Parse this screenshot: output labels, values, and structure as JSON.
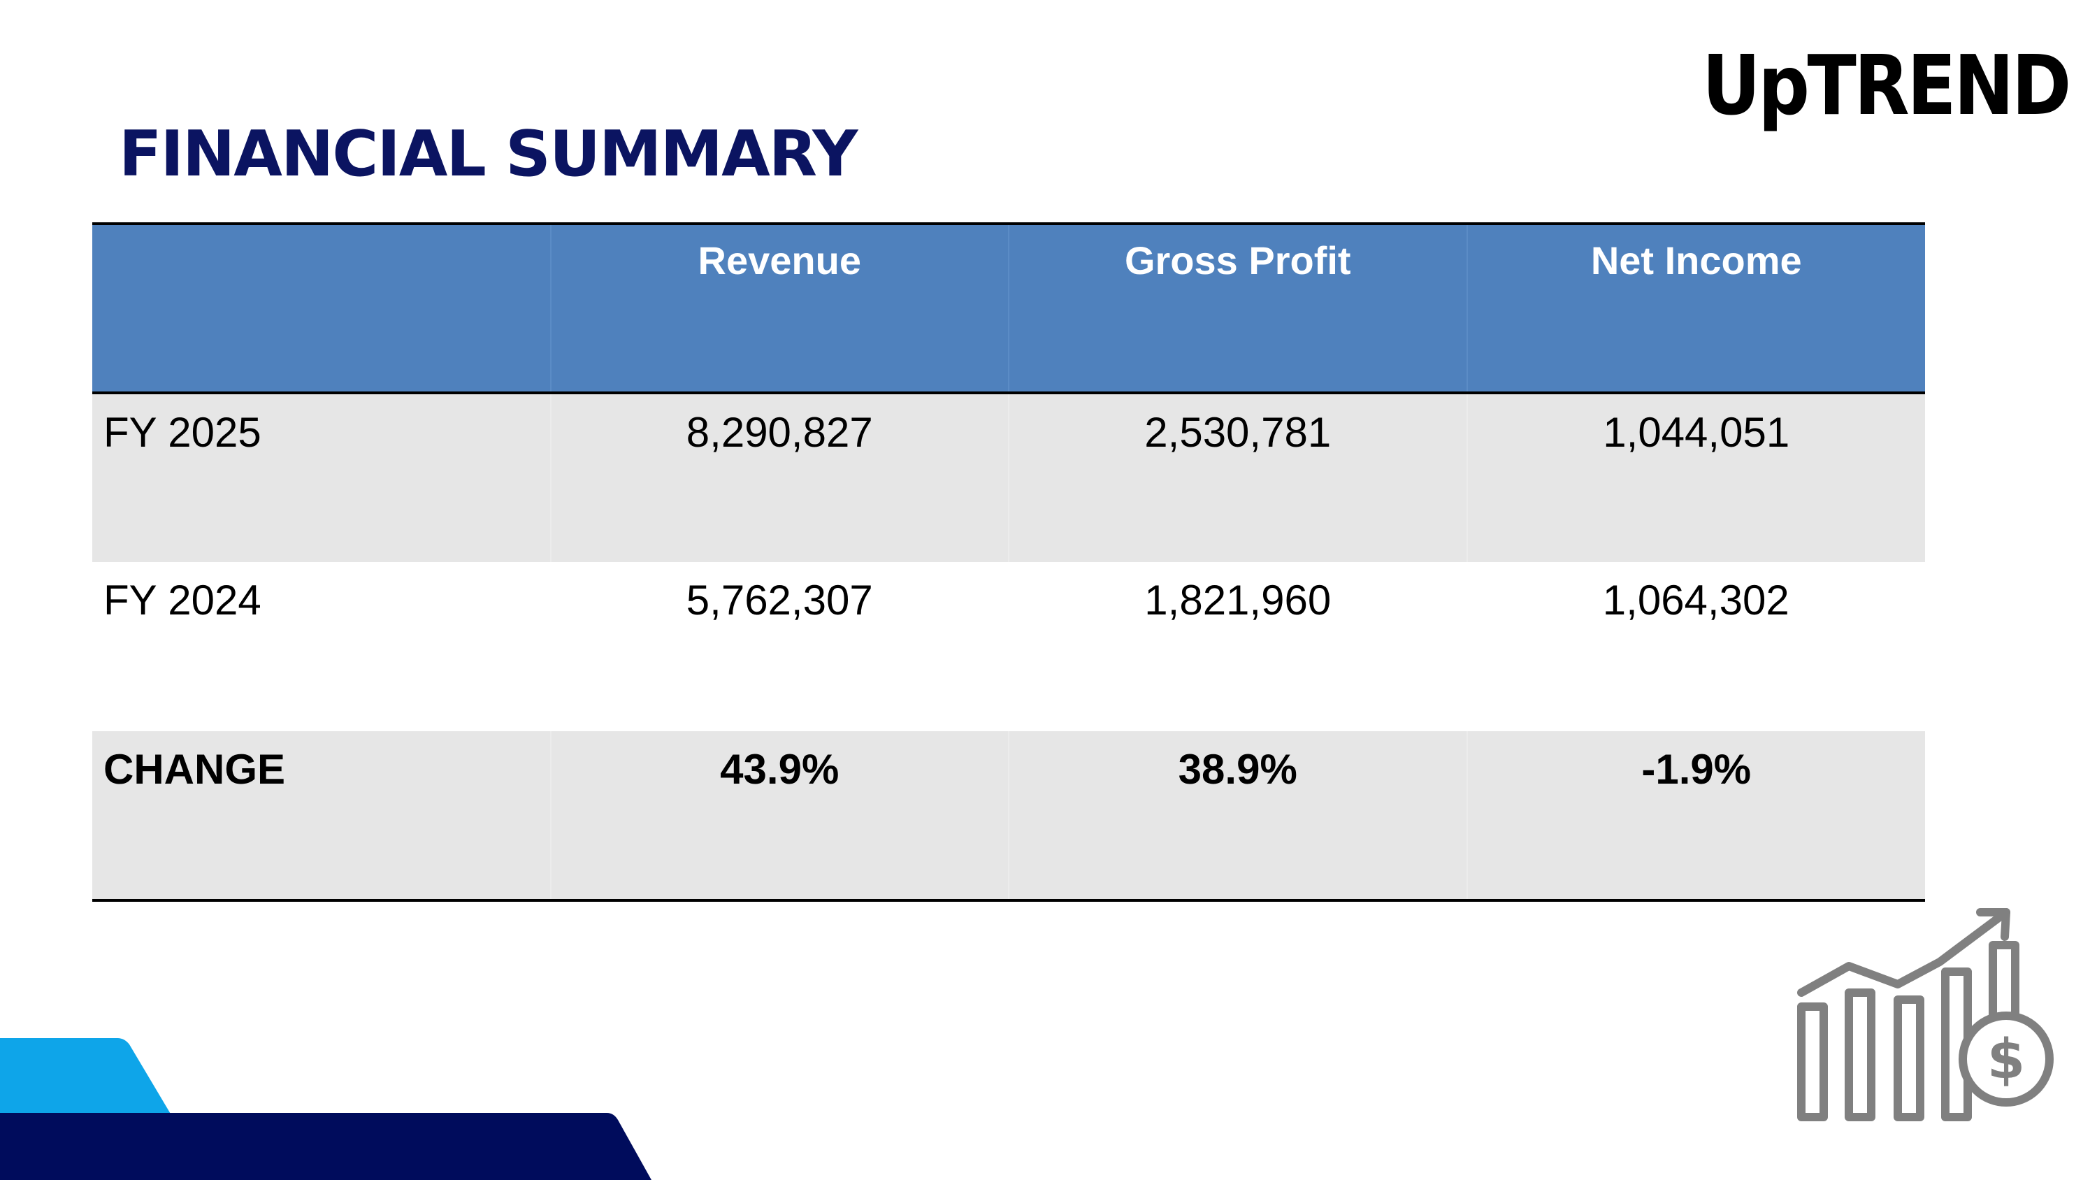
{
  "page": {
    "title": "FINANCIAL SUMMARY",
    "logo_text": "UpTREND"
  },
  "table": {
    "headers": [
      "",
      "Revenue",
      "Gross Profit",
      "Net Income"
    ],
    "rows": [
      {
        "label": "FY 2025",
        "values": [
          "8,290,827",
          "2,530,781",
          "1,044,051"
        ]
      },
      {
        "label": "FY 2024",
        "values": [
          "5,762,307",
          "1,821,960",
          "1,064,302"
        ]
      },
      {
        "label": "CHANGE",
        "values": [
          "43.9%",
          "38.9%",
          "-1.9%"
        ]
      }
    ]
  },
  "icons": {
    "logo": "uptrend-logo",
    "growth": "bar-chart-dollar-growth-icon"
  },
  "colors": {
    "title": "#0b1461",
    "header_bg": "#4f81bd",
    "row_shade": "#e6e6e6",
    "accent_light": "#0ea5e9",
    "accent_dark": "#000c5c",
    "icon_gray": "#808080"
  }
}
